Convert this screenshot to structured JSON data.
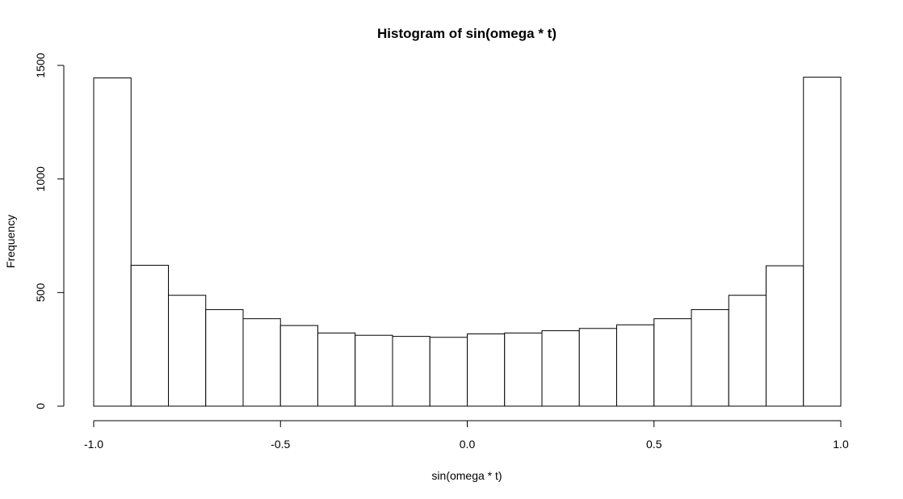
{
  "chart_data": {
    "type": "bar",
    "title": "Histogram of sin(omega * t)",
    "xlabel": "sin(omega * t)",
    "ylabel": "Frequency",
    "xlim": [
      -1.0,
      1.0
    ],
    "ylim": [
      0,
      1500
    ],
    "grid": false,
    "bin_edges": [
      -1.0,
      -0.9,
      -0.8,
      -0.7,
      -0.6,
      -0.5,
      -0.4,
      -0.3,
      -0.2,
      -0.1,
      0.0,
      0.1,
      0.2,
      0.3,
      0.4,
      0.5,
      0.6,
      0.7,
      0.8,
      0.9,
      1.0
    ],
    "values": [
      1445,
      620,
      488,
      425,
      385,
      355,
      322,
      312,
      307,
      303,
      318,
      322,
      332,
      342,
      358,
      385,
      425,
      488,
      618,
      1448
    ],
    "x_ticks": [
      {
        "value": -1.0,
        "label": "-1.0"
      },
      {
        "value": -0.5,
        "label": "-0.5"
      },
      {
        "value": 0.0,
        "label": "0.0"
      },
      {
        "value": 0.5,
        "label": "0.5"
      },
      {
        "value": 1.0,
        "label": "1.0"
      }
    ],
    "y_ticks": [
      {
        "value": 0,
        "label": "0"
      },
      {
        "value": 500,
        "label": "500"
      },
      {
        "value": 1000,
        "label": "1000"
      },
      {
        "value": 1500,
        "label": "1500"
      }
    ]
  }
}
